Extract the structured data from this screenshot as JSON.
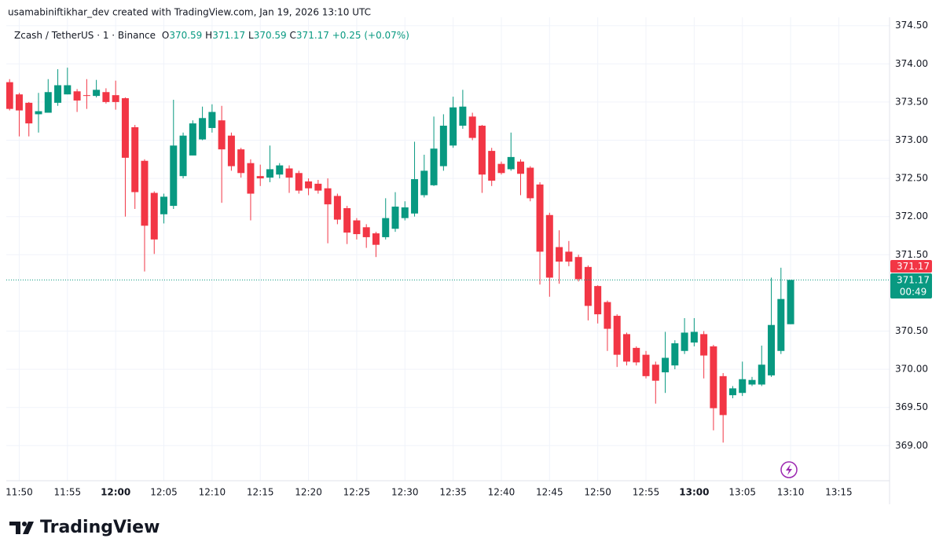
{
  "header": "usamabiniftikhar_dev created with TradingView.com, Jan 19, 2026 13:10 UTC",
  "legend": {
    "symbol": "Zcash / TetherUS · 1 · Binance",
    "items": [
      {
        "key": "O",
        "value": "370.59"
      },
      {
        "key": "H",
        "value": "371.17"
      },
      {
        "key": "L",
        "value": "370.59"
      },
      {
        "key": "C",
        "value": "371.17"
      }
    ],
    "change": "+0.25 (+0.07%)"
  },
  "price_labels": {
    "upper": "371.17",
    "last": "371.17",
    "countdown": "00:49"
  },
  "brand": "TradingView",
  "chart_data": {
    "type": "candlestick",
    "up_color": "#089981",
    "down_color": "#f23645",
    "grid": true,
    "x": [
      "11:49",
      "11:50",
      "11:51",
      "11:52",
      "11:53",
      "11:54",
      "11:55",
      "11:56",
      "11:57",
      "11:58",
      "11:59",
      "12:00",
      "12:01",
      "12:02",
      "12:03",
      "12:04",
      "12:05",
      "12:06",
      "12:07",
      "12:08",
      "12:09",
      "12:10",
      "12:11",
      "12:12",
      "12:13",
      "12:14",
      "12:15",
      "12:16",
      "12:17",
      "12:18",
      "12:19",
      "12:20",
      "12:21",
      "12:22",
      "12:23",
      "12:24",
      "12:25",
      "12:26",
      "12:27",
      "12:28",
      "12:29",
      "12:30",
      "12:31",
      "12:32",
      "12:33",
      "12:34",
      "12:35",
      "12:36",
      "12:37",
      "12:38",
      "12:39",
      "12:40",
      "12:41",
      "12:42",
      "12:43",
      "12:44",
      "12:45",
      "12:46",
      "12:47",
      "12:48",
      "12:49",
      "12:50",
      "12:51",
      "12:52",
      "12:53",
      "12:54",
      "12:55",
      "12:56",
      "12:57",
      "12:58",
      "12:59",
      "13:00",
      "13:01",
      "13:02",
      "13:03",
      "13:04",
      "13:05",
      "13:06",
      "13:07",
      "13:08",
      "13:09",
      "13:10"
    ],
    "open": [
      373.76,
      373.6,
      373.49,
      373.34,
      373.36,
      373.49,
      373.6,
      373.64,
      373.59,
      373.58,
      373.63,
      373.59,
      373.55,
      373.17,
      372.73,
      372.31,
      372.03,
      372.14,
      372.53,
      372.8,
      373.01,
      373.16,
      373.26,
      373.06,
      372.88,
      372.7,
      372.53,
      372.51,
      372.55,
      372.63,
      372.57,
      372.46,
      372.43,
      372.37,
      372.27,
      372.11,
      371.95,
      371.86,
      371.78,
      371.73,
      371.84,
      371.98,
      372.04,
      372.28,
      372.41,
      372.66,
      372.93,
      373.19,
      373.31,
      373.19,
      372.86,
      372.69,
      372.62,
      372.72,
      372.64,
      372.42,
      372.02,
      371.6,
      371.54,
      371.47,
      371.34,
      371.09,
      370.88,
      370.7,
      370.46,
      370.28,
      370.19,
      370.06,
      369.96,
      370.05,
      370.24,
      370.35,
      370.46,
      370.3,
      369.91,
      369.66,
      369.69,
      369.8,
      369.8,
      369.92,
      370.24,
      370.59
    ],
    "high": [
      373.8,
      373.62,
      373.5,
      373.62,
      373.8,
      373.93,
      373.95,
      373.67,
      373.8,
      373.79,
      373.68,
      373.78,
      373.56,
      373.2,
      372.75,
      372.33,
      372.3,
      373.53,
      373.1,
      373.26,
      373.44,
      373.47,
      373.45,
      373.1,
      372.9,
      372.75,
      372.68,
      372.93,
      372.7,
      372.67,
      372.6,
      372.5,
      372.48,
      372.5,
      372.3,
      372.14,
      371.98,
      371.9,
      371.8,
      372.24,
      372.32,
      372.2,
      372.98,
      372.81,
      373.31,
      373.34,
      373.57,
      373.66,
      373.36,
      373.2,
      372.9,
      372.72,
      373.1,
      372.75,
      372.66,
      372.45,
      372.05,
      371.82,
      371.68,
      371.5,
      371.36,
      371.1,
      370.9,
      370.72,
      370.48,
      370.3,
      370.24,
      370.1,
      370.49,
      370.38,
      370.67,
      370.67,
      370.5,
      370.32,
      369.95,
      369.78,
      370.1,
      369.9,
      370.31,
      371.2,
      371.33,
      371.17
    ],
    "low": [
      373.39,
      373.05,
      373.05,
      373.1,
      373.36,
      373.45,
      373.6,
      373.37,
      373.41,
      373.56,
      373.48,
      373.4,
      372.0,
      372.1,
      371.28,
      371.51,
      371.91,
      372.1,
      372.5,
      372.8,
      373.0,
      373.1,
      372.18,
      372.6,
      372.51,
      371.95,
      372.4,
      372.45,
      372.5,
      372.31,
      372.3,
      372.28,
      372.3,
      371.65,
      371.9,
      371.64,
      371.7,
      371.59,
      371.47,
      371.7,
      371.8,
      371.95,
      372.0,
      372.25,
      372.4,
      372.6,
      372.9,
      373.15,
      373.0,
      372.31,
      372.4,
      372.55,
      372.6,
      372.28,
      372.2,
      371.11,
      370.95,
      371.12,
      371.35,
      371.15,
      370.64,
      370.6,
      370.24,
      370.03,
      370.05,
      370.05,
      369.88,
      369.55,
      369.69,
      370.0,
      370.2,
      370.3,
      369.88,
      369.2,
      369.04,
      369.62,
      369.65,
      369.78,
      369.78,
      369.9,
      370.2,
      370.59
    ],
    "close": [
      373.41,
      373.39,
      373.22,
      373.38,
      373.63,
      373.72,
      373.72,
      373.52,
      373.58,
      373.66,
      373.5,
      373.5,
      372.77,
      372.32,
      371.88,
      371.7,
      372.26,
      372.93,
      373.06,
      373.22,
      373.29,
      373.37,
      372.88,
      372.66,
      372.57,
      372.3,
      372.5,
      372.62,
      372.67,
      372.51,
      372.34,
      372.37,
      372.34,
      372.16,
      371.96,
      371.79,
      371.77,
      371.73,
      371.63,
      371.98,
      372.13,
      372.12,
      372.49,
      372.6,
      372.89,
      373.19,
      373.43,
      373.44,
      373.03,
      372.55,
      372.47,
      372.57,
      372.78,
      372.56,
      372.24,
      371.54,
      371.2,
      371.41,
      371.41,
      371.18,
      370.83,
      370.72,
      370.53,
      370.19,
      370.1,
      370.09,
      369.91,
      369.85,
      370.15,
      370.34,
      370.48,
      370.49,
      370.18,
      369.49,
      369.4,
      369.75,
      369.87,
      369.86,
      370.06,
      370.58,
      370.92,
      371.17
    ],
    "ylim": [
      368.54,
      374.61
    ],
    "yticks": [
      {
        "value": 374.5,
        "label": "374.50"
      },
      {
        "value": 374.0,
        "label": "374.00"
      },
      {
        "value": 373.5,
        "label": "373.50"
      },
      {
        "value": 373.0,
        "label": "373.00"
      },
      {
        "value": 372.5,
        "label": "372.50"
      },
      {
        "value": 372.0,
        "label": "372.00"
      },
      {
        "value": 371.5,
        "label": "371.50"
      },
      {
        "value": 370.5,
        "label": "370.50"
      },
      {
        "value": 370.0,
        "label": "370.00"
      },
      {
        "value": 369.5,
        "label": "369.50"
      },
      {
        "value": 369.0,
        "label": "369.00"
      }
    ],
    "xticks": [
      "11:50",
      "11:55",
      "12:00",
      "12:05",
      "12:10",
      "12:15",
      "12:20",
      "12:25",
      "12:30",
      "12:35",
      "12:40",
      "12:45",
      "12:50",
      "12:55",
      "13:00",
      "13:05",
      "13:10",
      "13:15"
    ]
  }
}
